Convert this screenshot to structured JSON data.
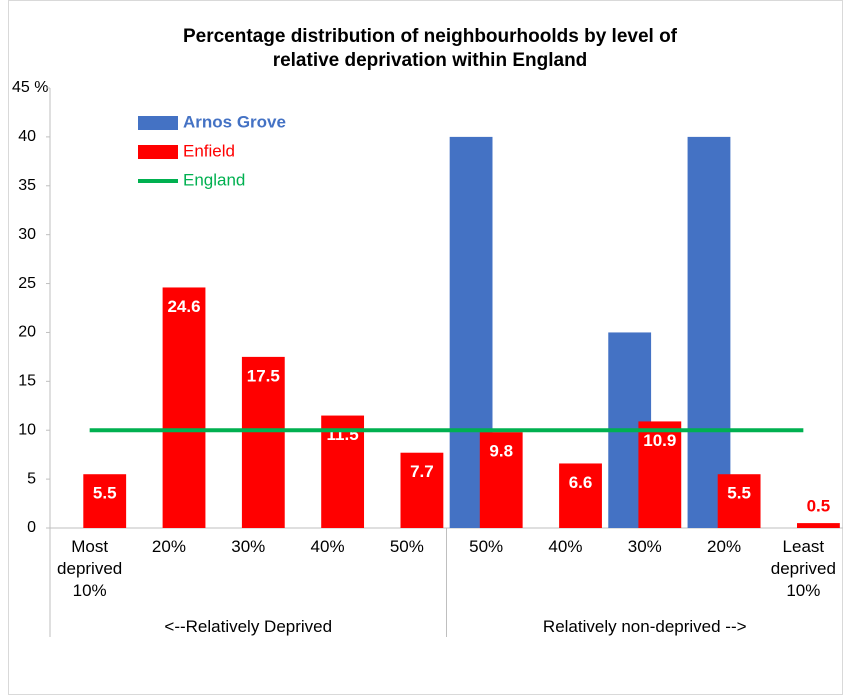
{
  "chart_data": {
    "type": "bar",
    "title": [
      "Percentage distribution of neighbourhoolds by level of",
      "relative deprivation within England"
    ],
    "categories": [
      "Most deprived 10%",
      "20%",
      "30%",
      "40%",
      "50%",
      "50%",
      "40%",
      "30%",
      "20%",
      "Least deprived 10%"
    ],
    "groups": [
      {
        "label": "<--Relatively Deprived",
        "span": [
          0,
          4
        ]
      },
      {
        "label": "Relatively non-deprived -->",
        "span": [
          5,
          9
        ]
      }
    ],
    "series": [
      {
        "name": "Arnos Grove",
        "color": "#4472c4",
        "type": "bar",
        "values": [
          0,
          0,
          0,
          0,
          0,
          40,
          0,
          20,
          40,
          0
        ]
      },
      {
        "name": "Enfield",
        "color": "#ff0000",
        "type": "bar",
        "values": [
          5.5,
          24.6,
          17.5,
          11.5,
          7.7,
          9.8,
          6.6,
          10.9,
          5.5,
          0.5
        ],
        "data_labels": true
      },
      {
        "name": "England",
        "color": "#00b050",
        "type": "line",
        "values": [
          10,
          10,
          10,
          10,
          10,
          10,
          10,
          10,
          10,
          10
        ]
      }
    ],
    "ylim": [
      0,
      45
    ],
    "yticks": [
      0,
      5,
      10,
      15,
      20,
      25,
      30,
      35,
      40,
      {
        "value": 45,
        "label": "45 %"
      }
    ],
    "legend": "top-left",
    "grid": false
  }
}
